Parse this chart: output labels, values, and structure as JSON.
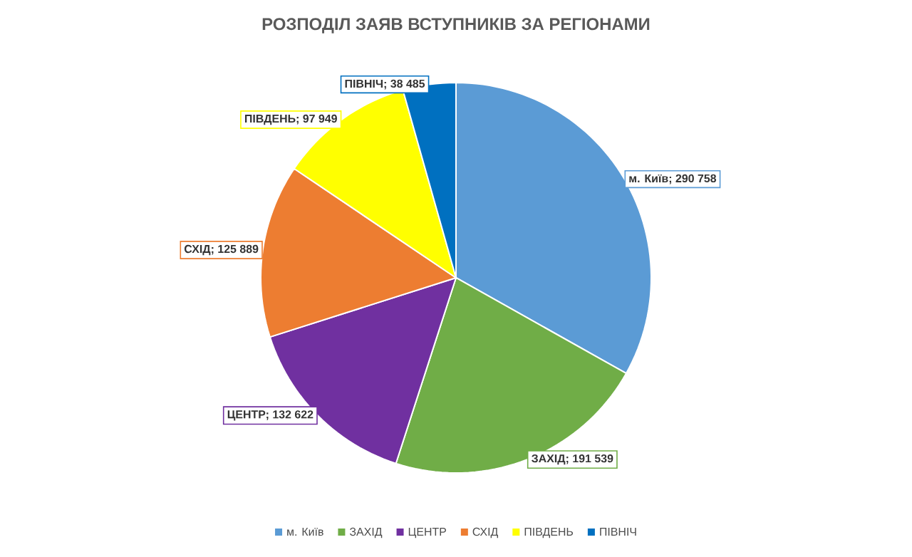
{
  "chart_data": {
    "type": "pie",
    "title": "РОЗПОДІЛ ЗАЯВ ВСТУПНИКІВ ЗА РЕГІОНАМИ",
    "categories": [
      "м. Київ",
      "ЗАХІД",
      "ЦЕНТР",
      "СХІД",
      "ПІВДЕНЬ",
      "ПІВНІЧ"
    ],
    "values": [
      290758,
      191539,
      132622,
      125889,
      97949,
      38485
    ],
    "value_labels": [
      "м. Київ; 290 758",
      "ЗАХІД; 191 539",
      "ЦЕНТР; 132 622",
      "СХІД; 125 889",
      "ПІВДЕНЬ; 97 949",
      "ПІВНІЧ; 38 485"
    ],
    "colors": [
      "#5b9bd5",
      "#70ad47",
      "#7030a0",
      "#ed7d31",
      "#ffff00",
      "#0070c0"
    ],
    "legend": "bottom"
  }
}
